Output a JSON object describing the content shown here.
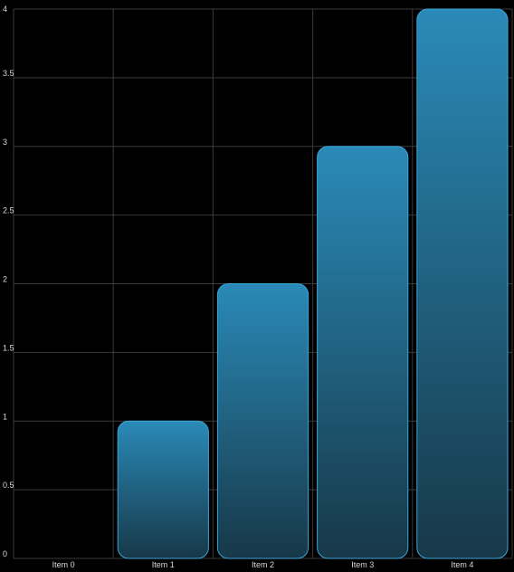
{
  "chart_data": {
    "type": "bar",
    "categories": [
      "Item 0",
      "Item 1",
      "Item 2",
      "Item 3",
      "Item 4"
    ],
    "values": [
      0,
      1,
      2,
      3,
      4
    ],
    "yticks": [
      "0",
      "0.5",
      "1",
      "1.5",
      "2",
      "2.5",
      "3",
      "3.5",
      "4"
    ],
    "ylim": [
      0,
      4
    ],
    "grid": true,
    "colors": {
      "background": "#000000",
      "grid": "#3a3a3a",
      "bar_top": "#2a8ab8",
      "bar_bottom": "#173848",
      "bar_stroke": "#3aa6d8",
      "text": "#d9d9d9"
    }
  }
}
